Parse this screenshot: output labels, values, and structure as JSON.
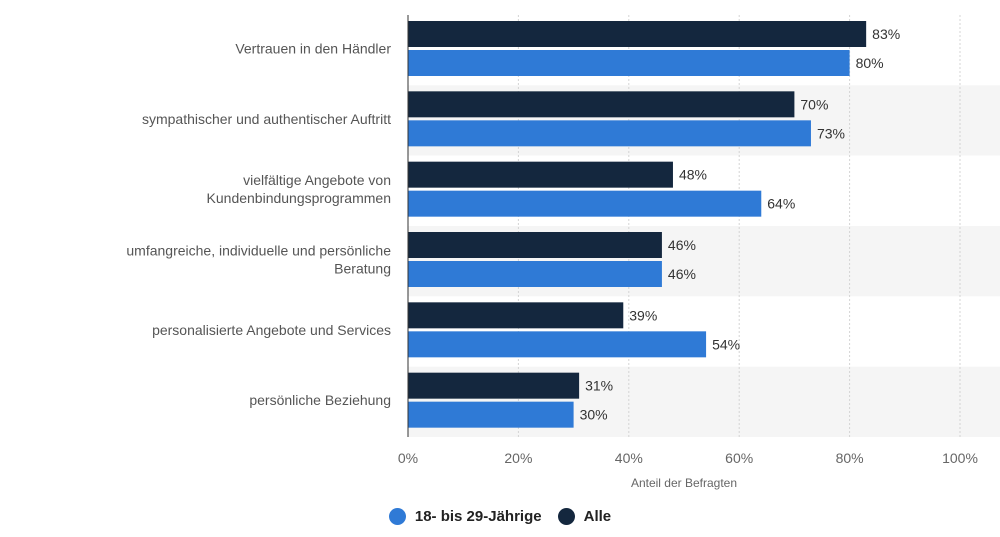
{
  "chart_data": {
    "type": "bar",
    "orientation": "horizontal",
    "categories": [
      [
        "Vertrauen in den Händler"
      ],
      [
        "sympathischer und authentischer Auftritt"
      ],
      [
        "vielfältige Angebote von",
        "Kundenbindungsprogrammen"
      ],
      [
        "umfangreiche, individuelle und persönliche",
        "Beratung"
      ],
      [
        "personalisierte Angebote und Services"
      ],
      [
        "persönliche Beziehung"
      ]
    ],
    "series": [
      {
        "name": "Alle",
        "color": "#14273e",
        "values": [
          83,
          70,
          48,
          46,
          39,
          31
        ]
      },
      {
        "name": "18- bis 29-Jährige",
        "color": "#2f7ad6",
        "values": [
          80,
          73,
          64,
          46,
          54,
          30
        ]
      }
    ],
    "value_suffix": "%",
    "xlabel": "Anteil der Befragten",
    "xlim": [
      0,
      100
    ],
    "xticks": [
      0,
      20,
      40,
      60,
      80,
      100
    ],
    "xtick_labels": [
      "0%",
      "20%",
      "40%",
      "60%",
      "80%",
      "100%"
    ],
    "grid": true,
    "legend": {
      "position": "bottom-center",
      "items": [
        {
          "label": "18- bis 29-Jährige",
          "color": "#2f7ad6"
        },
        {
          "label": "Alle",
          "color": "#14273e"
        }
      ]
    }
  }
}
